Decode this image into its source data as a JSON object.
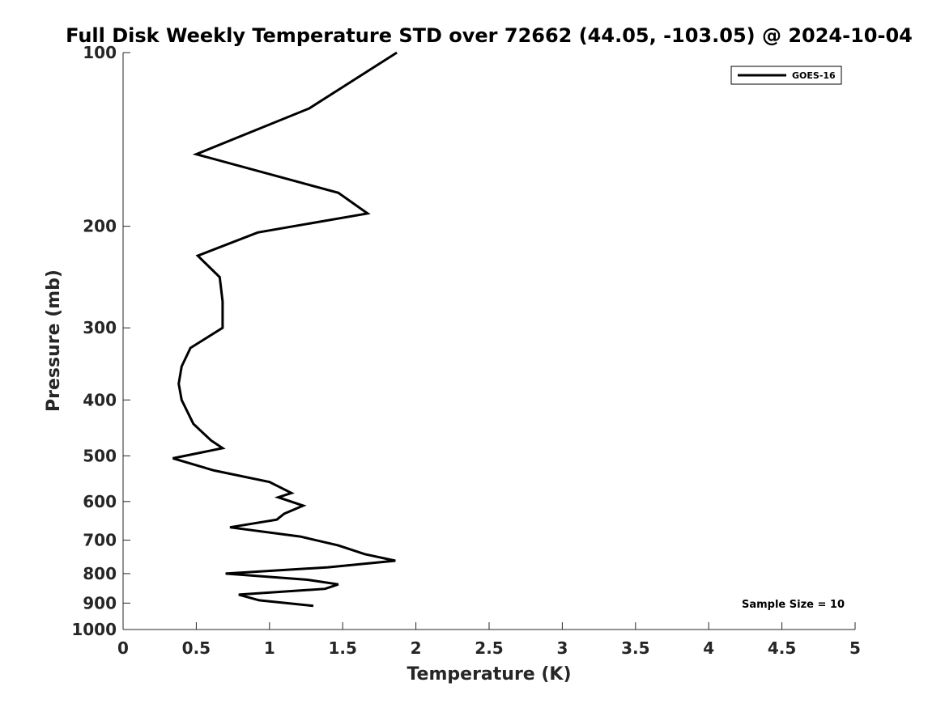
{
  "chart_data": {
    "type": "line",
    "title": "Full Disk Weekly Temperature STD over 72662 (44.05, -103.05) @ 2024-10-04",
    "xlabel": "Temperature (K)",
    "ylabel": "Pressure (mb)",
    "xlim": [
      0,
      5
    ],
    "ylim": [
      100,
      1000
    ],
    "y_scale": "log",
    "y_reversed": true,
    "x_ticks": [
      0,
      0.5,
      1,
      1.5,
      2,
      2.5,
      3,
      3.5,
      4,
      4.5,
      5
    ],
    "x_tick_labels": [
      "0",
      "0.5",
      "1",
      "1.5",
      "2",
      "2.5",
      "3",
      "3.5",
      "4",
      "4.5",
      "5"
    ],
    "y_ticks": [
      100,
      200,
      300,
      400,
      500,
      600,
      700,
      800,
      900,
      1000
    ],
    "y_tick_labels": [
      "100",
      "200",
      "300",
      "400",
      "500",
      "600",
      "700",
      "800",
      "900",
      "1000"
    ],
    "grid": false,
    "legend_position": "top-right",
    "annotation": "Sample Size = 10",
    "series": [
      {
        "name": "GOES-16",
        "color": "#000000",
        "points": [
          [
            1.87,
            100
          ],
          [
            1.27,
            125
          ],
          [
            0.5,
            150
          ],
          [
            1.47,
            175
          ],
          [
            1.67,
            190
          ],
          [
            0.92,
            205
          ],
          [
            0.51,
            225
          ],
          [
            0.66,
            245
          ],
          [
            0.68,
            270
          ],
          [
            0.68,
            300
          ],
          [
            0.46,
            325
          ],
          [
            0.4,
            350
          ],
          [
            0.38,
            375
          ],
          [
            0.4,
            400
          ],
          [
            0.48,
            440
          ],
          [
            0.6,
            470
          ],
          [
            0.68,
            485
          ],
          [
            0.34,
            505
          ],
          [
            0.62,
            530
          ],
          [
            1.0,
            555
          ],
          [
            1.15,
            580
          ],
          [
            1.06,
            590
          ],
          [
            1.23,
            610
          ],
          [
            1.1,
            630
          ],
          [
            1.05,
            645
          ],
          [
            0.73,
            665
          ],
          [
            1.21,
            690
          ],
          [
            1.47,
            715
          ],
          [
            1.65,
            740
          ],
          [
            1.86,
            760
          ],
          [
            1.4,
            780
          ],
          [
            0.7,
            800
          ],
          [
            1.26,
            820
          ],
          [
            1.47,
            835
          ],
          [
            1.38,
            850
          ],
          [
            0.79,
            870
          ],
          [
            0.93,
            890
          ],
          [
            1.3,
            910
          ]
        ]
      }
    ]
  }
}
